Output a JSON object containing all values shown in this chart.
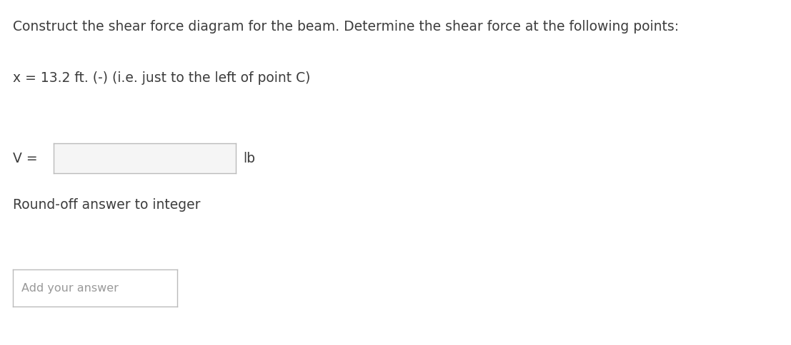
{
  "background_color": "#ffffff",
  "title_text": "Construct the shear force diagram for the beam. Determine the shear force at the following points:",
  "title_fontsize": 13.5,
  "title_color": "#3d3d3d",
  "line1_text": "x = 13.2 ft. (-) (i.e. just to the left of point C)",
  "line1_fontsize": 13.5,
  "line1_color": "#3d3d3d",
  "v_label_text": "V =",
  "v_label_fontsize": 13.5,
  "v_label_color": "#3d3d3d",
  "lb_text": "lb",
  "lb_fontsize": 13.5,
  "lb_color": "#3d3d3d",
  "input_box_facecolor": "#f5f5f5",
  "input_box_edgecolor": "#bbbbbb",
  "roundoff_text": "Round-off answer to integer",
  "roundoff_fontsize": 13.5,
  "roundoff_color": "#3d3d3d",
  "answer_box_edgecolor": "#bbbbbb",
  "answer_box_facecolor": "#ffffff",
  "answer_placeholder_text": "Add your answer",
  "answer_placeholder_fontsize": 11.5,
  "answer_placeholder_color": "#999999"
}
